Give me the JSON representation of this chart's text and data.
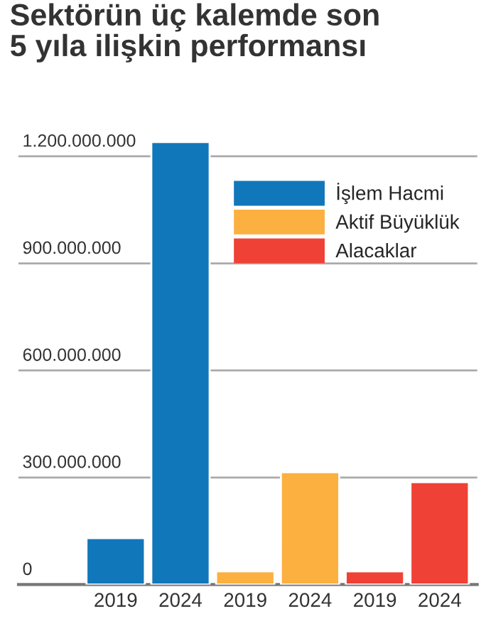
{
  "chart_data": {
    "type": "bar",
    "title": "Sektörün üç kalemde son\n5 yıla ilişkin performansı",
    "categories": [
      "2019",
      "2024",
      "2019",
      "2024",
      "2019",
      "2024"
    ],
    "stacked": true,
    "series": [
      {
        "name": "İşlem Hacmi",
        "color": "#1177bb",
        "values": [
          130000000,
          1240000000,
          null,
          null,
          null,
          null
        ]
      },
      {
        "name": "Aktif Büyüklük",
        "color": "#fbb040",
        "values": [
          null,
          null,
          37000000,
          315000000,
          null,
          null
        ]
      },
      {
        "name": "Alacaklar",
        "color": "#ef4136",
        "values": [
          null,
          null,
          null,
          null,
          37000000,
          287000000
        ]
      }
    ],
    "ylim": [
      0,
      1240000000
    ],
    "yticks": [
      {
        "value": 0,
        "label": "0"
      },
      {
        "value": 300000000,
        "label": "300.000.000"
      },
      {
        "value": 600000000,
        "label": "600.000.000"
      },
      {
        "value": 900000000,
        "label": "900.000.000"
      },
      {
        "value": 1200000000,
        "label": "1.200.000.000"
      }
    ],
    "grid": "y",
    "legend": "top right"
  }
}
